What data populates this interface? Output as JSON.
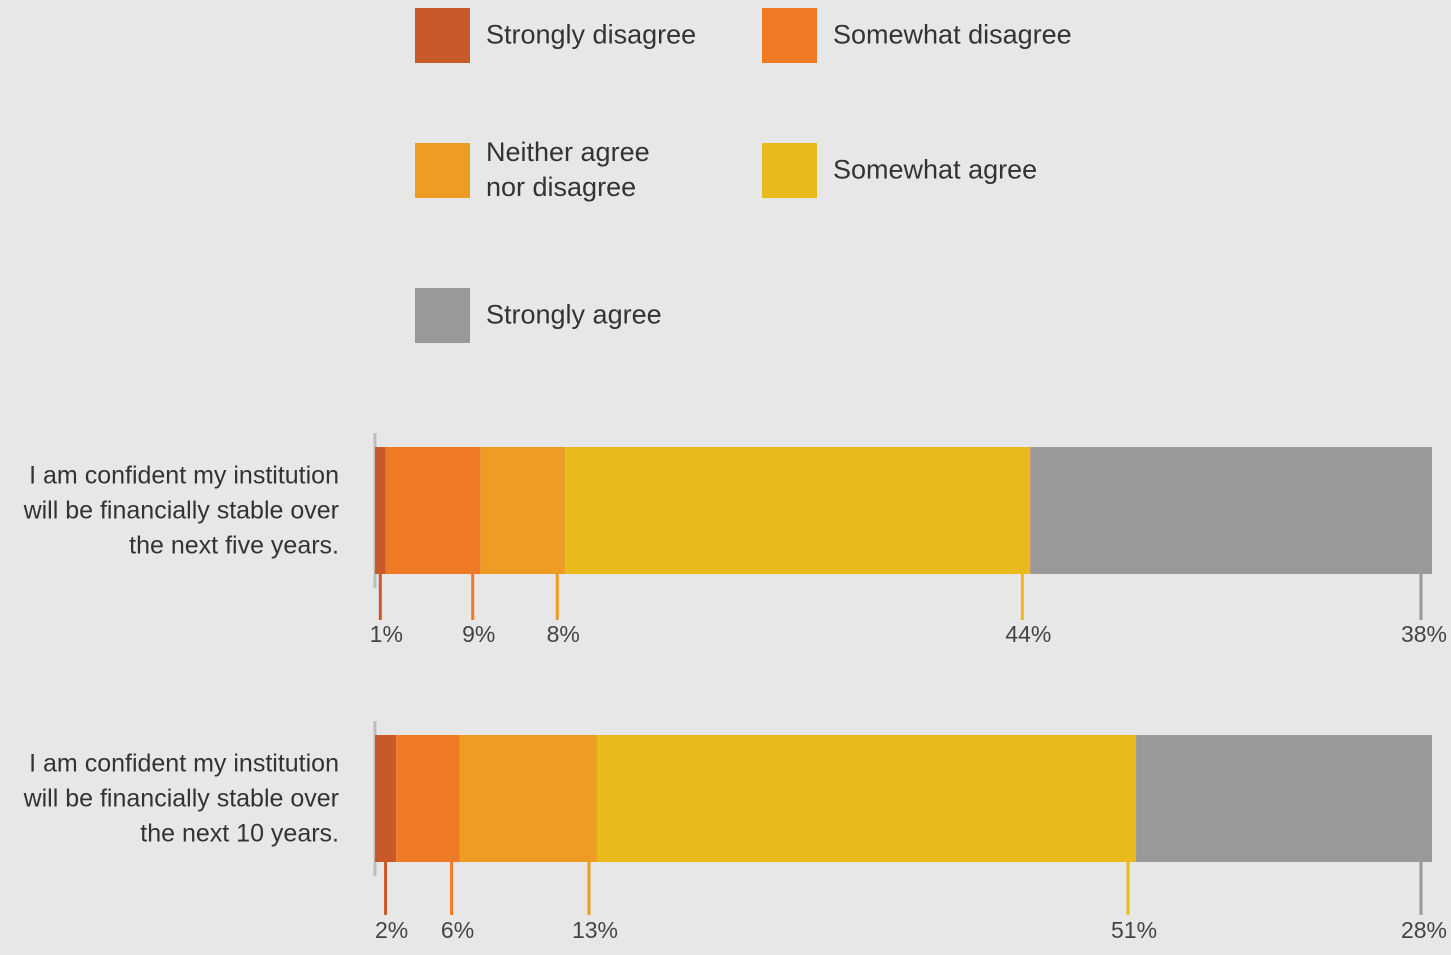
{
  "chart_data": {
    "type": "bar",
    "orientation": "horizontal",
    "stacked": true,
    "normalized": true,
    "categories": [
      "I am confident my institution will be financially stable over the next five years.",
      "I am confident my institution will be financially stable over the next 10 years."
    ],
    "category_lines": [
      [
        "I am confident my institution",
        "will be financially stable over",
        "the next five years."
      ],
      [
        "I am confident my institution",
        "will be financially stable over",
        "the next 10 years."
      ]
    ],
    "series": [
      {
        "name": "Strongly disagree",
        "name_lines": [
          "Strongly disagree"
        ],
        "color": "#c75a28",
        "values": [
          1,
          2
        ],
        "labels": [
          "1%",
          "2%"
        ]
      },
      {
        "name": "Somewhat disagree",
        "name_lines": [
          "Somewhat disagree"
        ],
        "color": "#ef7a25",
        "values": [
          9,
          6
        ],
        "labels": [
          "9%",
          "6%"
        ]
      },
      {
        "name": "Neither agree nor disagree",
        "name_lines": [
          "Neither agree",
          "nor disagree"
        ],
        "color": "#ed9c24",
        "values": [
          8,
          13
        ],
        "labels": [
          "8%",
          "13%"
        ]
      },
      {
        "name": "Somewhat agree",
        "name_lines": [
          "Somewhat agree"
        ],
        "color": "#eab91c",
        "values": [
          44,
          51
        ],
        "labels": [
          "44%",
          "51%"
        ]
      },
      {
        "name": "Strongly agree",
        "name_lines": [
          "Strongly agree"
        ],
        "color": "#999999",
        "values": [
          38,
          28
        ],
        "labels": [
          "38%",
          "28%"
        ]
      }
    ],
    "title": "",
    "xlabel": "",
    "ylabel": "",
    "legend_position": "top",
    "grid": false
  }
}
